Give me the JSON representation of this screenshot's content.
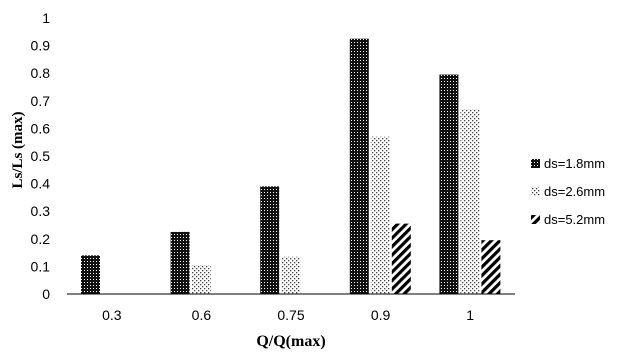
{
  "chart_data": {
    "type": "bar",
    "xlabel": "Q/Q(max)",
    "ylabel": "Ls/Ls (max)",
    "ylim": [
      0,
      1
    ],
    "yticks": [
      "0",
      "0.1",
      "0.2",
      "0.3",
      "0.4",
      "0.5",
      "0.6",
      "0.7",
      "0.8",
      "0.9",
      "1"
    ],
    "categories": [
      "0.3",
      "0.6",
      "0.75",
      "0.9",
      "1"
    ],
    "series": [
      {
        "name": "ds=1.8mm",
        "pattern": "dense-dots",
        "values": [
          0.14,
          0.225,
          0.39,
          0.925,
          0.795
        ]
      },
      {
        "name": "ds=2.6mm",
        "pattern": "sparse-dots",
        "values": [
          0,
          0.105,
          0.135,
          0.57,
          0.67
        ]
      },
      {
        "name": "ds=5.2mm",
        "pattern": "diagonal-stripes",
        "values": [
          0,
          0,
          0,
          0.255,
          0.195
        ]
      }
    ],
    "grid": false,
    "legend_position": "right"
  }
}
